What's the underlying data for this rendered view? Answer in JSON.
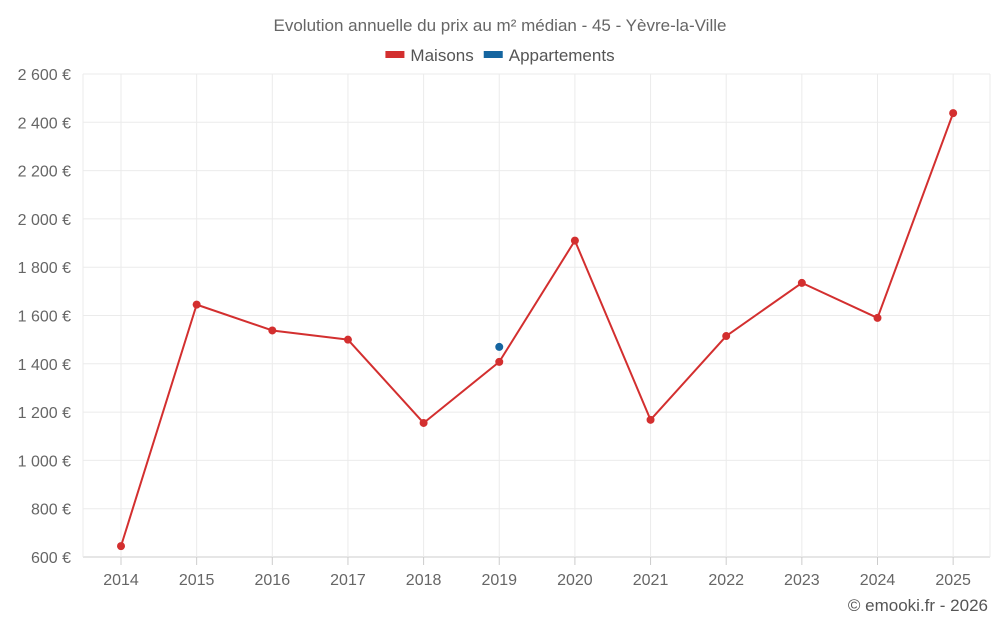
{
  "chart_data": {
    "type": "line",
    "title": "Evolution annuelle du prix au m² médian - 45 - Yèvre-la-Ville",
    "categories": [
      "2014",
      "2015",
      "2016",
      "2017",
      "2018",
      "2019",
      "2020",
      "2021",
      "2022",
      "2023",
      "2024",
      "2025"
    ],
    "y_tick_labels": [
      "600 €",
      "800 €",
      "1 000 €",
      "1 200 €",
      "1 400 €",
      "1 600 €",
      "1 800 €",
      "2 000 €",
      "2 200 €",
      "2 400 €",
      "2 600 €"
    ],
    "ylim": [
      600,
      2600
    ],
    "y_ticks": [
      600,
      800,
      1000,
      1200,
      1400,
      1600,
      1800,
      2000,
      2200,
      2400,
      2600
    ],
    "grid": true,
    "legend_position": "top-center",
    "series": [
      {
        "name": "Maisons",
        "color": "#d32f2f",
        "values": [
          645,
          1645,
          1538,
          1500,
          1155,
          1408,
          1910,
          1168,
          1515,
          1735,
          1590,
          2438
        ]
      },
      {
        "name": "Appartements",
        "color": "#1565a0",
        "values": [
          null,
          null,
          null,
          null,
          null,
          1470,
          null,
          null,
          null,
          null,
          null,
          null
        ]
      }
    ]
  },
  "credit": "© emooki.fr - 2026"
}
